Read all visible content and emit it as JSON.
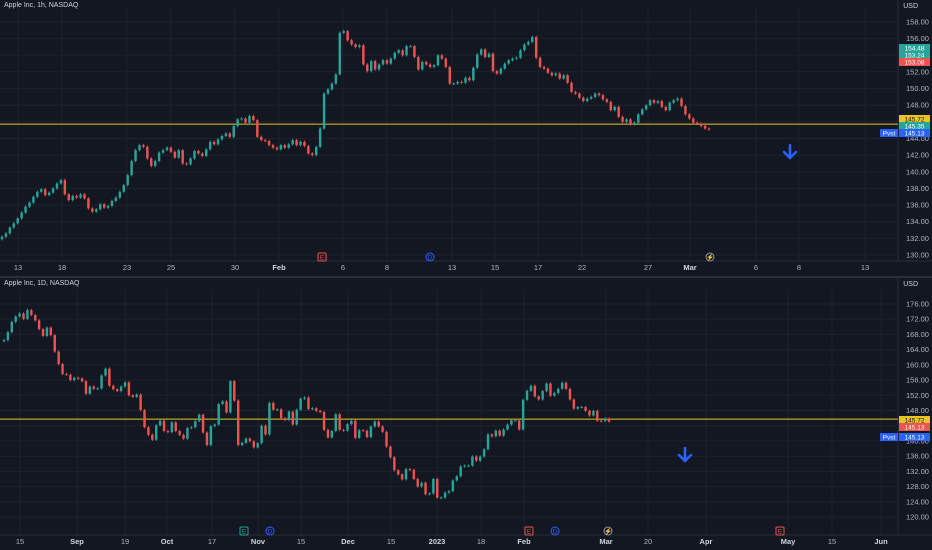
{
  "colors": {
    "up": "#26a69a",
    "down": "#ef5350",
    "hline": "#e8c525",
    "arrow": "#2962ff",
    "grid": "#1e222d",
    "bg": "#131722"
  },
  "top": {
    "title": "Apple Inc, 1h, NASDAQ",
    "currency": "USD",
    "y_ticks": [
      "158.00",
      "156.00",
      "154.00",
      "152.00",
      "150.00",
      "148.00",
      "146.00",
      "144.00",
      "142.00",
      "140.00",
      "138.00",
      "136.00",
      "134.00",
      "132.00",
      "130.00"
    ],
    "x_ticks": [
      "13",
      "18",
      "23",
      "25",
      "30",
      "Feb",
      "6",
      "8",
      "13",
      "15",
      "17",
      "22",
      "27",
      "Mar",
      "6",
      "8",
      "13"
    ],
    "badges": [
      {
        "label": "154.48",
        "color": "#26a69a"
      },
      {
        "label": "153.24",
        "color": "#26a69a"
      },
      {
        "label": "153.08",
        "color": "#ef5350"
      },
      {
        "label": "145.72",
        "color": "#e8c525"
      },
      {
        "label": "145.35",
        "color": "#26a69a"
      },
      {
        "label": "145.13",
        "color": "#2962ff"
      }
    ],
    "tag_label": "Pvst",
    "events": [
      "E",
      "D",
      "⚡"
    ]
  },
  "bottom": {
    "title": "Apple Inc, 1D, NASDAQ",
    "currency": "USD",
    "y_ticks": [
      "176.00",
      "172.00",
      "168.00",
      "164.00",
      "160.00",
      "156.00",
      "152.00",
      "148.00",
      "144.00",
      "140.00",
      "136.00",
      "132.00",
      "128.00",
      "124.00",
      "120.00"
    ],
    "x_ticks": [
      "15",
      "Sep",
      "19",
      "Oct",
      "17",
      "Nov",
      "15",
      "Dec",
      "15",
      "2023",
      "18",
      "Feb",
      "Mar",
      "20",
      "Apr",
      "May",
      "15",
      "Jun"
    ],
    "badges": [
      {
        "label": "145.72",
        "color": "#e8c525"
      },
      {
        "label": "145.13",
        "color": "#ef5350"
      },
      {
        "label": "145.13",
        "color": "#2962ff"
      }
    ],
    "tag_label": "Pvst",
    "events": [
      "E",
      "D",
      "E",
      "D",
      "⚡",
      "E"
    ]
  },
  "chart_data": [
    {
      "type": "candlestick",
      "title": "Apple Inc, 1h, NASDAQ",
      "ylim": [
        130,
        158
      ],
      "horizontal_line": 145.72,
      "close_approx": [
        132.2,
        132.6,
        133.3,
        133.8,
        134.4,
        135.1,
        135.8,
        136.3,
        137.0,
        137.6,
        137.9,
        137.2,
        137.5,
        138.0,
        138.6,
        139.0,
        137.3,
        136.6,
        137.1,
        136.9,
        137.3,
        136.8,
        135.6,
        135.2,
        135.5,
        136.1,
        135.7,
        135.9,
        136.5,
        136.9,
        137.6,
        138.4,
        139.6,
        141.3,
        142.6,
        143.2,
        143.0,
        141.6,
        140.7,
        141.3,
        142.3,
        142.6,
        142.9,
        142.4,
        141.7,
        142.6,
        141.0,
        140.9,
        141.6,
        142.5,
        142.2,
        141.9,
        142.7,
        143.6,
        143.3,
        143.9,
        144.3,
        144.6,
        144.2,
        145.5,
        146.3,
        146.4,
        145.9,
        146.7,
        146.2,
        144.2,
        143.8,
        143.7,
        143.2,
        142.9,
        142.7,
        143.2,
        142.9,
        143.3,
        143.8,
        143.2,
        143.6,
        143.1,
        142.2,
        142.0,
        143.0,
        145.2,
        149.4,
        149.9,
        150.6,
        151.7,
        156.7,
        156.9,
        155.8,
        155.3,
        155.0,
        155.2,
        152.9,
        152.1,
        153.3,
        152.3,
        152.9,
        153.4,
        153.0,
        153.6,
        154.3,
        154.6,
        154.0,
        155.1,
        155.1,
        153.8,
        152.3,
        153.2,
        152.9,
        152.6,
        152.8,
        154.0,
        153.6,
        152.6,
        150.6,
        150.6,
        150.8,
        150.7,
        151.3,
        151.0,
        152.5,
        154.1,
        154.7,
        153.8,
        154.2,
        152.1,
        151.8,
        152.4,
        153.0,
        153.4,
        153.6,
        153.7,
        154.6,
        155.3,
        155.6,
        156.2,
        153.7,
        152.6,
        152.4,
        151.9,
        151.6,
        151.8,
        151.2,
        151.6,
        150.7,
        149.6,
        149.4,
        148.9,
        148.5,
        148.8,
        149.0,
        149.4,
        149.2,
        148.7,
        148.4,
        147.4,
        147.8,
        146.6,
        146.0,
        146.3,
        145.7,
        145.9,
        146.9,
        147.5,
        148.0,
        148.6,
        148.3,
        148.5,
        147.8,
        147.4,
        148.3,
        148.6,
        148.8,
        147.9,
        146.9,
        146.4,
        145.9,
        145.8,
        145.5,
        145.2,
        145.1
      ]
    },
    {
      "type": "candlestick",
      "title": "Apple Inc, 1D, NASDAQ",
      "ylim": [
        120,
        176
      ],
      "horizontal_line": 145.72,
      "close_approx": [
        166.5,
        168.6,
        171.3,
        172.7,
        173.5,
        172.1,
        174.4,
        173.1,
        171.7,
        169.4,
        167.6,
        169.8,
        167.8,
        163.5,
        160.2,
        157.6,
        157.4,
        156.0,
        156.6,
        156.4,
        155.7,
        152.4,
        154.3,
        153.7,
        153.8,
        157.2,
        159.0,
        154.5,
        153.6,
        153.1,
        154.3,
        155.4,
        152.0,
        151.6,
        152.2,
        148.1,
        143.6,
        141.6,
        140.3,
        144.1,
        145.3,
        142.6,
        142.3,
        144.9,
        142.6,
        141.6,
        140.6,
        143.4,
        143.6,
        145.2,
        146.9,
        142.2,
        138.9,
        143.9,
        144.3,
        149.7,
        150.4,
        147.5,
        155.7,
        150.6,
        138.9,
        139.5,
        140.6,
        139.9,
        138.3,
        139.4,
        144.0,
        141.7,
        150.0,
        148.2,
        148.3,
        146.0,
        145.5,
        147.7,
        144.3,
        148.2,
        151.1,
        151.4,
        148.4,
        148.6,
        147.9,
        147.6,
        142.9,
        140.9,
        142.6,
        147.0,
        142.9,
        142.7,
        144.4,
        145.3,
        140.8,
        142.8,
        142.7,
        141.0,
        143.8,
        145.1,
        143.8,
        142.4,
        138.5,
        135.7,
        132.3,
        131.2,
        129.9,
        132.6,
        132.4,
        130.0,
        128.0,
        129.0,
        126.0,
        126.2,
        130.0,
        125.1,
        125.1,
        126.4,
        126.8,
        129.6,
        130.7,
        133.3,
        133.5,
        133.5,
        135.9,
        134.8,
        135.9,
        137.8,
        141.7,
        141.2,
        142.7,
        141.4,
        143.0,
        144.3,
        145.4,
        145.4,
        143.0,
        150.8,
        153.2,
        154.5,
        151.7,
        150.9,
        153.1,
        155.1,
        151.9,
        152.6,
        153.7,
        155.3,
        153.7,
        150.9,
        148.5,
        148.9,
        148.9,
        147.9,
        146.7,
        147.9,
        145.3,
        145.2,
        145.9,
        145.1
      ]
    }
  ]
}
